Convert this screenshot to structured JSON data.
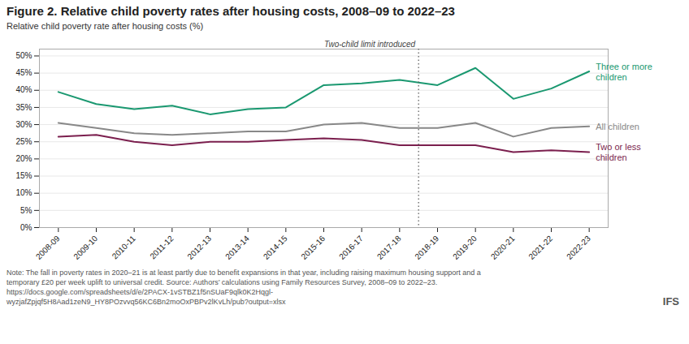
{
  "chart_data": {
    "type": "line",
    "title": "Figure 2. Relative child poverty rates after housing costs, 2008–09 to 2022–23",
    "y_label": "Relative child poverty rate after housing costs (%)",
    "categories": [
      "2008-09",
      "2009-10",
      "2010-11",
      "2011-12",
      "2012-13",
      "2013-14",
      "2014-15",
      "2015-16",
      "2016-17",
      "2017-18",
      "2018-19",
      "2019-20",
      "2020-21",
      "2021-22",
      "2022-23"
    ],
    "series": [
      {
        "name": "Three or more\nchildren",
        "color": "#1a9870",
        "values": [
          39.5,
          36.0,
          34.5,
          35.5,
          33.0,
          34.5,
          35.0,
          41.5,
          42.0,
          43.0,
          41.5,
          46.5,
          37.5,
          40.5,
          45.5
        ]
      },
      {
        "name": "All children",
        "color": "#888888",
        "values": [
          30.5,
          29.0,
          27.5,
          27.0,
          27.5,
          28.0,
          28.0,
          30.0,
          30.5,
          29.0,
          29.0,
          30.5,
          26.5,
          29.0,
          29.5
        ]
      },
      {
        "name": "Two or less\nchildren",
        "color": "#7b1f4e",
        "values": [
          26.5,
          27.0,
          25.0,
          24.0,
          25.0,
          25.0,
          25.5,
          26.0,
          25.5,
          24.0,
          24.0,
          24.0,
          22.0,
          22.5,
          22.0
        ]
      }
    ],
    "annotations": [
      {
        "text": "Two-child limit introduced",
        "between": [
          "2017-18",
          "2018-19"
        ],
        "line_style": "dotted"
      }
    ],
    "ylim": [
      0,
      52
    ],
    "yticks": [
      {
        "value": 0,
        "label": "0%"
      },
      {
        "value": 5,
        "label": "5%"
      },
      {
        "value": 10,
        "label": "10%"
      },
      {
        "value": 15,
        "label": "15%"
      },
      {
        "value": 20,
        "label": "20%"
      },
      {
        "value": 25,
        "label": "25%"
      },
      {
        "value": 30,
        "label": "30%"
      },
      {
        "value": 35,
        "label": "35%"
      },
      {
        "value": 40,
        "label": "40%"
      },
      {
        "value": 45,
        "label": "45%"
      },
      {
        "value": 50,
        "label": "50%"
      }
    ],
    "grid": true,
    "caption": [
      "Note: The fall in poverty rates in 2020–21 is at least partly due to benefit expansions in that year, including raising maximum housing support and a",
      "temporary £20 per week uplift to universal credit. Source: Authors’ calculations using Family Resources Survey, 2008–09 to 2022–23.",
      "https://docs.google.com/spreadsheets/d/e/2PACX-1vSTBZ1f5nSUaF9qlk0K2Hqgl-",
      "wyzjafZpjqf5H8Aad1zeN9_HY8POzvvq56KC6Bn2moOxPBPv2lKvLh/pub?output=xlsx"
    ],
    "credit": "IFS"
  }
}
